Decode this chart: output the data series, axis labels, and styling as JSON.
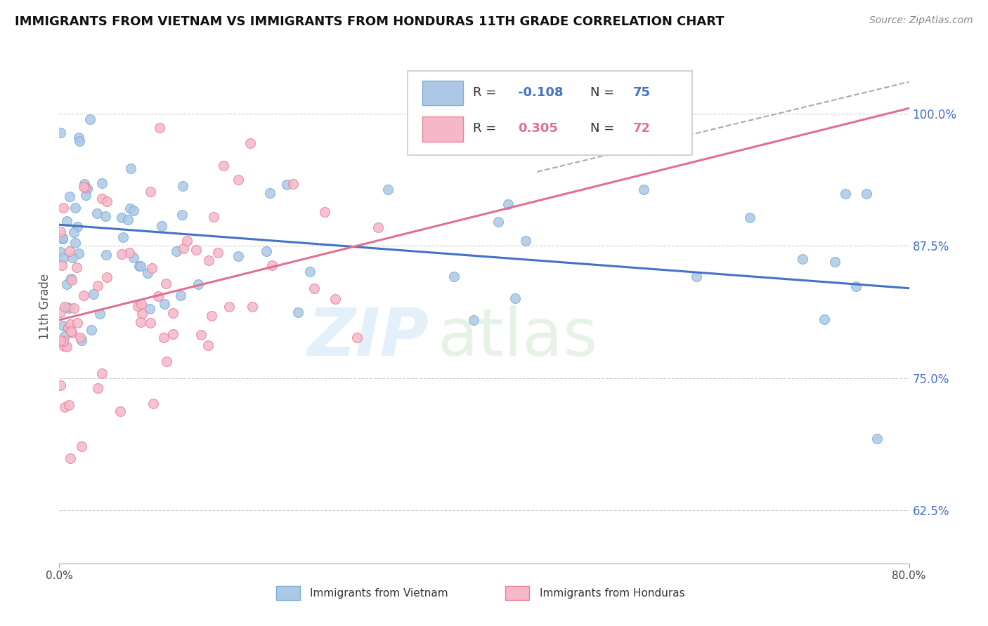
{
  "title": "IMMIGRANTS FROM VIETNAM VS IMMIGRANTS FROM HONDURAS 11TH GRADE CORRELATION CHART",
  "source": "Source: ZipAtlas.com",
  "ylabel": "11th Grade",
  "y_ticks_labels": [
    "62.5%",
    "75.0%",
    "87.5%",
    "100.0%"
  ],
  "y_tick_vals": [
    0.625,
    0.75,
    0.875,
    1.0
  ],
  "x_lim": [
    0.0,
    0.8
  ],
  "y_lim": [
    0.575,
    1.06
  ],
  "vietnam_color": "#adc8e6",
  "vietnam_edge_color": "#7aaed4",
  "honduras_color": "#f5b8c8",
  "honduras_edge_color": "#e8809a",
  "r_vietnam": -0.108,
  "n_vietnam": 75,
  "r_honduras": 0.305,
  "n_honduras": 72,
  "legend_label_vietnam": "Immigrants from Vietnam",
  "legend_label_honduras": "Immigrants from Honduras",
  "watermark_zip": "ZIP",
  "watermark_atlas": "atlas",
  "viet_line_x0": 0.0,
  "viet_line_y0": 0.895,
  "viet_line_x1": 0.8,
  "viet_line_y1": 0.835,
  "hond_line_x0": 0.0,
  "hond_line_y0": 0.805,
  "hond_line_x1": 0.8,
  "hond_line_y1": 1.005,
  "dash_line_x0": 0.45,
  "dash_line_y0": 0.945,
  "dash_line_x1": 0.8,
  "dash_line_y1": 1.03,
  "grid_color": "#cccccc",
  "viet_line_color": "#4472C4",
  "hond_line_color": "#e07090"
}
